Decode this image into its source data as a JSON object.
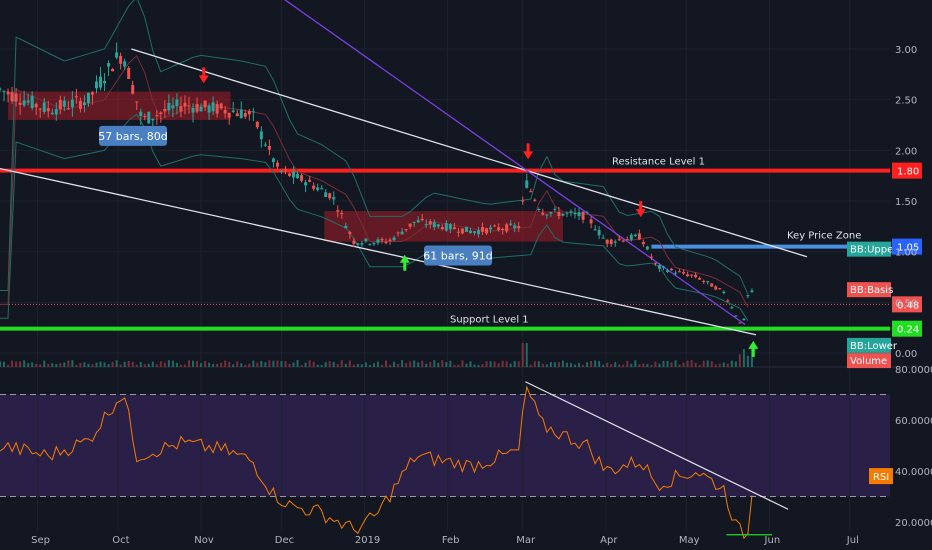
{
  "chart_data": [
    {
      "type": "candlestick",
      "ylim": [
        0,
        3.2
      ],
      "y_ticks": [
        "3.00",
        "2.50",
        "2.00",
        "1.50",
        "1.00",
        "0.50",
        "0.00"
      ],
      "y_tick_values": [
        3.0,
        2.5,
        2.0,
        1.5,
        1.0,
        0.5,
        0.0
      ],
      "x_labels": [
        "Sep",
        "Oct",
        "Nov",
        "Dec",
        "2019",
        "Feb",
        "Mar",
        "Apr",
        "May",
        "Jun",
        "Jul"
      ],
      "x_label_dates": [
        "2018-09-01",
        "2018-10-01",
        "2018-11-01",
        "2018-12-01",
        "2019-01-01",
        "2019-02-01",
        "2019-03-01",
        "2019-04-01",
        "2019-05-01",
        "2019-06-01",
        "2019-07-01"
      ],
      "date_range": [
        "2018-08-18",
        "2019-07-16"
      ],
      "price_path": [
        {
          "date": "2018-08-18",
          "price": 2.6
        },
        {
          "date": "2018-09-05",
          "price": 2.4
        },
        {
          "date": "2018-09-20",
          "price": 2.5
        },
        {
          "date": "2018-09-30",
          "price": 2.9
        },
        {
          "date": "2018-10-03",
          "price": 2.95
        },
        {
          "date": "2018-10-10",
          "price": 2.3
        },
        {
          "date": "2018-10-25",
          "price": 2.45
        },
        {
          "date": "2018-11-10",
          "price": 2.4
        },
        {
          "date": "2018-11-20",
          "price": 2.35
        },
        {
          "date": "2018-11-30",
          "price": 1.8
        },
        {
          "date": "2018-12-10",
          "price": 1.7
        },
        {
          "date": "2018-12-20",
          "price": 1.55
        },
        {
          "date": "2018-12-28",
          "price": 1.1
        },
        {
          "date": "2019-01-10",
          "price": 1.1
        },
        {
          "date": "2019-01-20",
          "price": 1.3
        },
        {
          "date": "2019-02-10",
          "price": 1.2
        },
        {
          "date": "2019-02-28",
          "price": 1.25
        },
        {
          "date": "2019-03-02",
          "price": 1.7
        },
        {
          "date": "2019-03-08",
          "price": 1.4
        },
        {
          "date": "2019-03-25",
          "price": 1.35
        },
        {
          "date": "2019-04-01",
          "price": 1.1
        },
        {
          "date": "2019-04-14",
          "price": 1.15
        },
        {
          "date": "2019-04-20",
          "price": 0.85
        },
        {
          "date": "2019-05-05",
          "price": 0.75
        },
        {
          "date": "2019-05-15",
          "price": 0.6
        },
        {
          "date": "2019-05-22",
          "price": 0.25
        },
        {
          "date": "2019-05-25",
          "price": 0.72
        },
        {
          "date": "2019-05-26",
          "price": 0.48
        }
      ],
      "levels": [
        {
          "name": "Resistance Level 1",
          "value": 1.8,
          "color": "#ff1f1f"
        },
        {
          "name": "Support Level 1",
          "value": 0.24,
          "color": "#22dd22"
        }
      ],
      "key_zone": {
        "label": "Key Price Zone",
        "value": 1.05,
        "color": "#4a90e2"
      },
      "price_labels": [
        {
          "text": "1.80",
          "value": 1.8,
          "color": "#ff1f1f"
        },
        {
          "text": "1.05",
          "value": 1.05,
          "color": "#2962ff"
        },
        {
          "text": "0.48",
          "value": 0.48,
          "color": "#ef5350"
        },
        {
          "text": "0.24",
          "value": 0.24,
          "color": "#22dd22"
        }
      ],
      "indicator_labels": [
        {
          "text": "BB:Upper",
          "value": 1.02,
          "color": "#26a69a"
        },
        {
          "text": "BB:Basis",
          "value": 0.62,
          "color": "#ef5350"
        },
        {
          "text": "BB:Lower",
          "value": 0.07,
          "color": "#26a69a"
        },
        {
          "text": "Volume",
          "value": -0.08,
          "color": "#ef5350"
        }
      ],
      "range_boxes": [
        {
          "label": "57 bars, 80d",
          "start": "2018-08-21",
          "end": "2018-11-12",
          "low": 2.3,
          "high": 2.58
        },
        {
          "label": "61 bars, 91d",
          "start": "2018-12-17",
          "end": "2019-03-16",
          "low": 1.1,
          "high": 1.4
        }
      ],
      "trendlines": [
        {
          "from": {
            "date": "2018-10-06",
            "price": 3.0
          },
          "to": {
            "date": "2019-06-15",
            "price": 0.95
          },
          "color": "#e0e3eb"
        },
        {
          "from": {
            "date": "2018-08-18",
            "price": 1.82
          },
          "to": {
            "date": "2019-05-27",
            "price": 0.18
          },
          "color": "#e0e3eb"
        },
        {
          "from": {
            "date": "2018-10-25",
            "price": 4.2
          },
          "to": {
            "date": "2019-05-23",
            "price": 0.28
          },
          "color": "#7b3fe4"
        }
      ],
      "down_arrows": [
        {
          "date": "2018-11-02",
          "price": 2.7
        },
        {
          "date": "2019-03-03",
          "price": 1.95
        },
        {
          "date": "2019-04-14",
          "price": 1.38
        }
      ],
      "up_arrows": [
        {
          "date": "2019-01-16",
          "price": 0.93
        },
        {
          "date": "2019-05-26",
          "price": 0.08
        }
      ]
    },
    {
      "type": "line",
      "name": "RSI",
      "ylim": [
        14,
        80
      ],
      "y_ticks": [
        "80.0000",
        "60.0000",
        "40.0000",
        "20.0000"
      ],
      "y_tick_values": [
        80,
        60,
        40,
        20
      ],
      "bands": [
        70,
        30
      ],
      "last_label": "RSI",
      "last_value": 38,
      "series": [
        {
          "date": "2018-08-18",
          "value": 50
        },
        {
          "date": "2018-09-05",
          "value": 46
        },
        {
          "date": "2018-09-20",
          "value": 52
        },
        {
          "date": "2018-09-30",
          "value": 67
        },
        {
          "date": "2018-10-03",
          "value": 71
        },
        {
          "date": "2018-10-08",
          "value": 46
        },
        {
          "date": "2018-10-25",
          "value": 51
        },
        {
          "date": "2018-11-10",
          "value": 48
        },
        {
          "date": "2018-11-20",
          "value": 44
        },
        {
          "date": "2018-11-28",
          "value": 31
        },
        {
          "date": "2018-12-05",
          "value": 26
        },
        {
          "date": "2018-12-15",
          "value": 24
        },
        {
          "date": "2018-12-28",
          "value": 17
        },
        {
          "date": "2019-01-05",
          "value": 22
        },
        {
          "date": "2019-01-20",
          "value": 46
        },
        {
          "date": "2019-02-10",
          "value": 42
        },
        {
          "date": "2019-02-28",
          "value": 48
        },
        {
          "date": "2019-03-02",
          "value": 74
        },
        {
          "date": "2019-03-08",
          "value": 58
        },
        {
          "date": "2019-03-25",
          "value": 50
        },
        {
          "date": "2019-04-01",
          "value": 40
        },
        {
          "date": "2019-04-14",
          "value": 44
        },
        {
          "date": "2019-04-20",
          "value": 35
        },
        {
          "date": "2019-05-05",
          "value": 40
        },
        {
          "date": "2019-05-15",
          "value": 33
        },
        {
          "date": "2019-05-20",
          "value": 17
        },
        {
          "date": "2019-05-24",
          "value": 15
        },
        {
          "date": "2019-05-26",
          "value": 38
        }
      ],
      "trendline": {
        "from": {
          "date": "2019-03-02",
          "value": 75
        },
        "to": {
          "date": "2019-06-08",
          "value": 25
        }
      },
      "support_segment": {
        "from": "2019-05-16",
        "to": "2019-06-02",
        "value": 15
      }
    }
  ]
}
